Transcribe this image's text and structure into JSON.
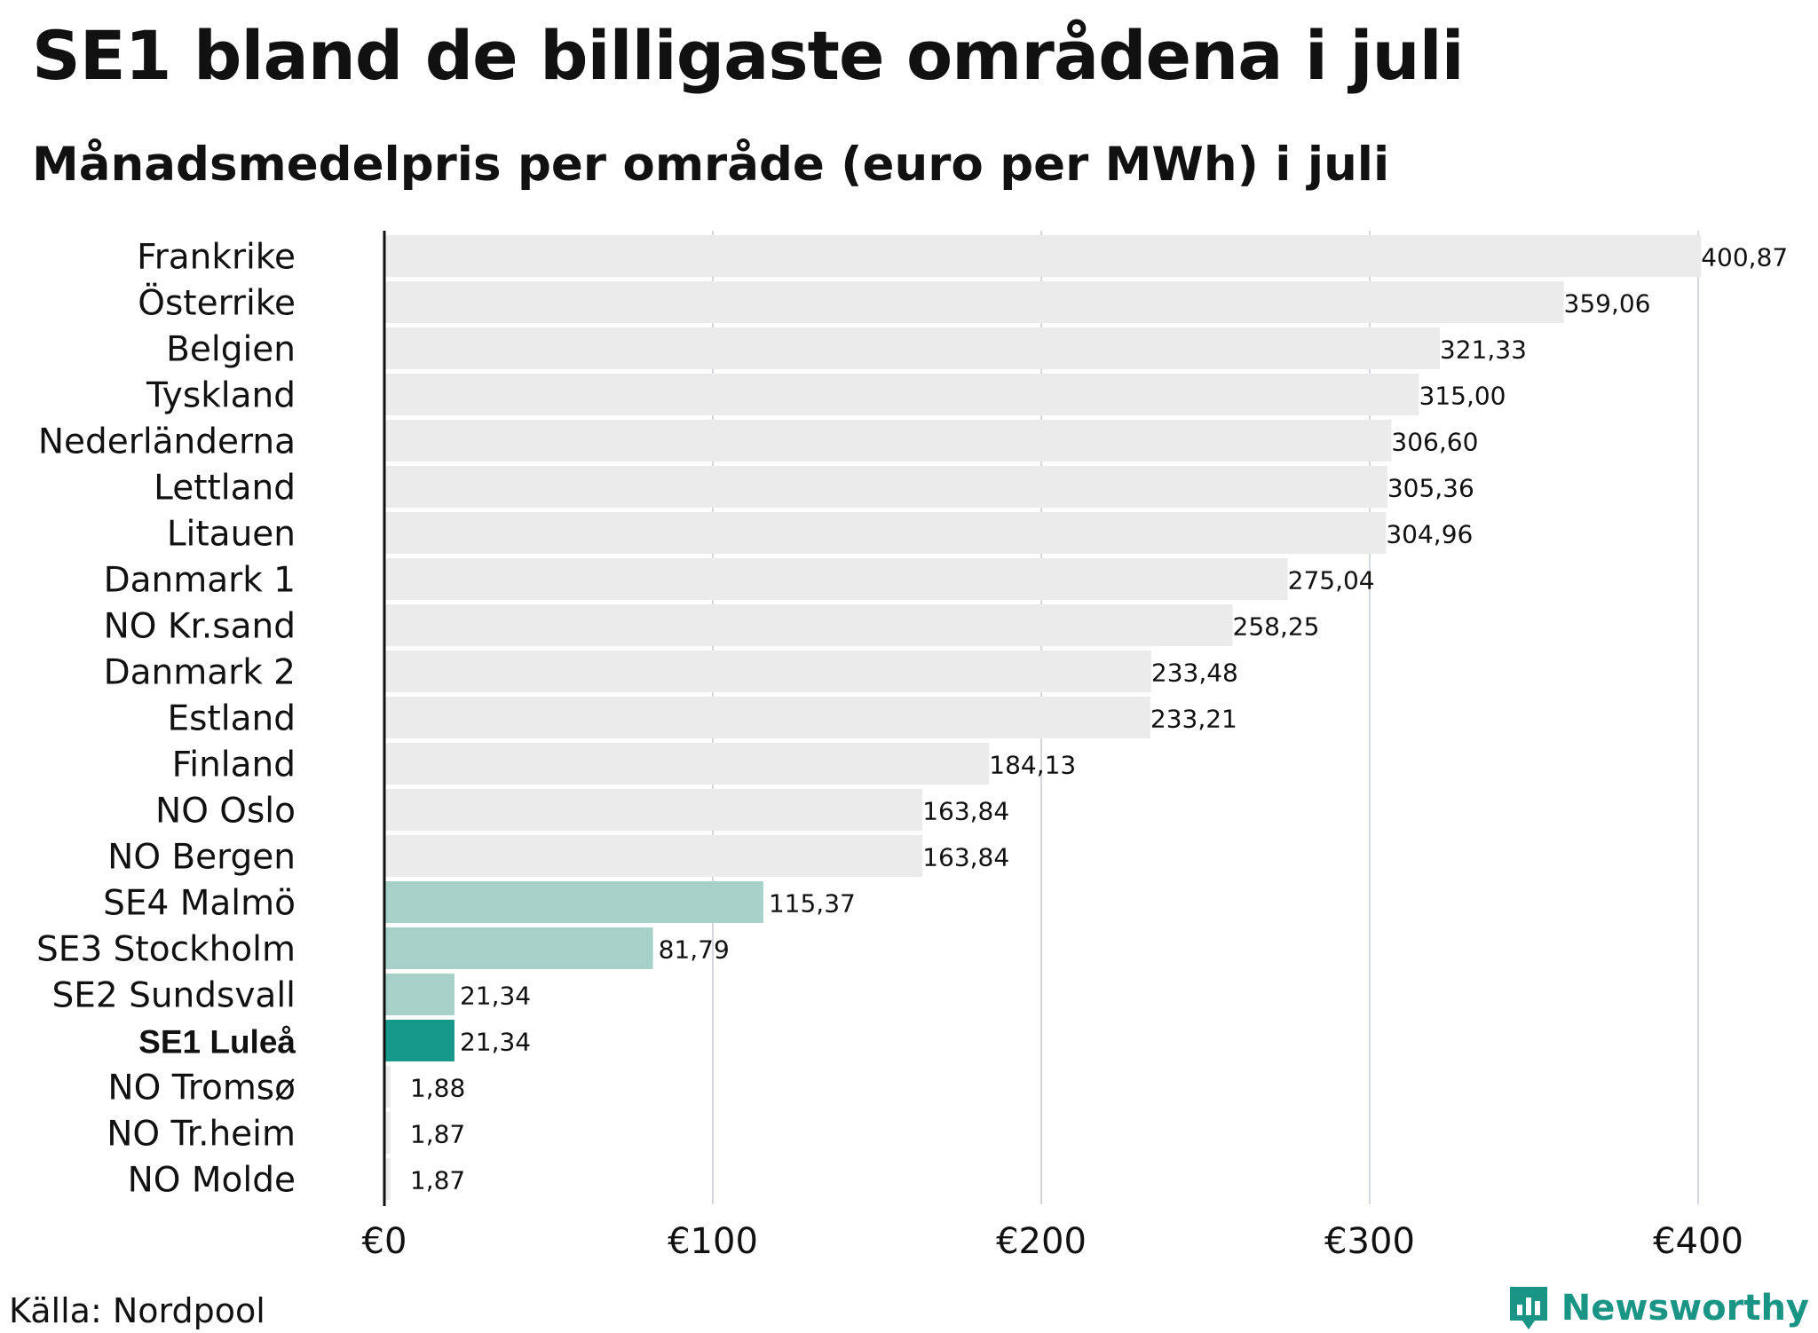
{
  "title": "SE1 bland de billigaste områdena i juli",
  "subtitle": "Månadsmedelpris per område (euro per MWh) i juli",
  "source": "Källa: Nordpool",
  "brand": "Newsworthy",
  "colors": {
    "bar_default": "#ebebeb",
    "bar_sweden": "#a7d0c9",
    "bar_highlight": "#16988a",
    "grid": "#c9cbd6",
    "axis": "#111111",
    "brand": "#1a9484"
  },
  "chart_data": {
    "type": "bar",
    "orientation": "horizontal",
    "title": "SE1 bland de billigaste områdena i juli",
    "subtitle": "Månadsmedelpris per område (euro per MWh) i juli",
    "xlabel": "",
    "ylabel": "",
    "xlim": [
      0,
      420
    ],
    "x_ticks": [
      0,
      100,
      200,
      300,
      400
    ],
    "x_tick_labels": [
      "€0",
      "€100",
      "€200",
      "€300",
      "€400"
    ],
    "grid": true,
    "categories": [
      "Frankrike",
      "Österrike",
      "Belgien",
      "Tyskland",
      "Nederländerna",
      "Lettland",
      "Litauen",
      "Danmark 1",
      "NO Kr.sand",
      "Danmark 2",
      "Estland",
      "Finland",
      "NO Oslo",
      "NO Bergen",
      "SE4 Malmö",
      "SE3 Stockholm",
      "SE2 Sundsvall",
      "SE1 Luleå",
      "NO Tromsø",
      "NO Tr.heim",
      "NO Molde"
    ],
    "values": [
      400.87,
      359.06,
      321.33,
      315.0,
      306.6,
      305.36,
      304.96,
      275.04,
      258.25,
      233.48,
      233.21,
      184.13,
      163.84,
      163.84,
      115.37,
      81.79,
      21.34,
      21.34,
      1.88,
      1.87,
      1.87
    ],
    "value_labels": [
      "400,87",
      "359,06",
      "321,33",
      "315,00",
      "306,60",
      "305,36",
      "304,96",
      "275,04",
      "258,25",
      "233,48",
      "233,21",
      "184,13",
      "163,84",
      "163,84",
      "115,37",
      "81,79",
      "21,34",
      "21,34",
      "1,88",
      "1,87",
      "1,87"
    ],
    "groups": [
      "other",
      "other",
      "other",
      "other",
      "other",
      "other",
      "other",
      "other",
      "other",
      "other",
      "other",
      "other",
      "other",
      "other",
      "sweden",
      "sweden",
      "sweden",
      "highlight",
      "other",
      "other",
      "other"
    ]
  }
}
